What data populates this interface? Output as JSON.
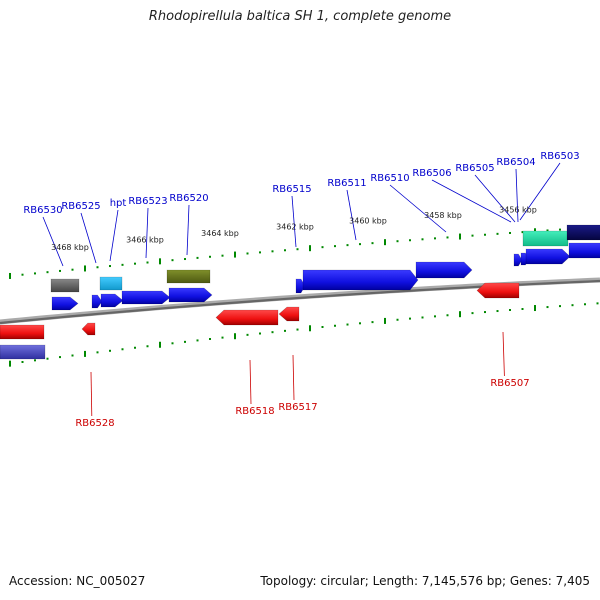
{
  "title": "Rhodopirellula baltica SH 1, complete genome",
  "footer": {
    "accession": "Accession: NC_005027",
    "topology": "Topology: circular; Length: 7,145,576 bp; Genes: 7,405"
  },
  "colors": {
    "forward_label": "#0000cc",
    "reverse_label": "#cc0000",
    "tick": "#008800",
    "backbone": "#888888"
  },
  "scale_labels": [
    "3468 kbp",
    "3466 kbp",
    "3464 kbp",
    "3462 kbp",
    "3460 kbp",
    "3458 kbp",
    "3456 kbp"
  ],
  "forward_gene_labels": [
    "RB6530",
    "RB6525",
    "hpt",
    "RB6523",
    "RB6520",
    "RB6515",
    "RB6511",
    "RB6510",
    "RB6506",
    "RB6505",
    "RB6504",
    "RB6503"
  ],
  "reverse_gene_labels": [
    "RB6528",
    "RB6518",
    "RB6517",
    "RB6507"
  ],
  "features": [
    {
      "kind": "forward-gene",
      "color": "#1515ee"
    },
    {
      "kind": "reverse-gene",
      "color": "#ee1111"
    },
    {
      "kind": "feature-gray",
      "color": "#666666"
    },
    {
      "kind": "feature-cyan",
      "color": "#22bbee"
    },
    {
      "kind": "feature-olive",
      "color": "#6b7a1e"
    },
    {
      "kind": "feature-teal",
      "color": "#22ddaa"
    },
    {
      "kind": "feature-navy",
      "color": "#0b0b66"
    },
    {
      "kind": "feature-slate",
      "color": "#4b4bbb"
    }
  ]
}
